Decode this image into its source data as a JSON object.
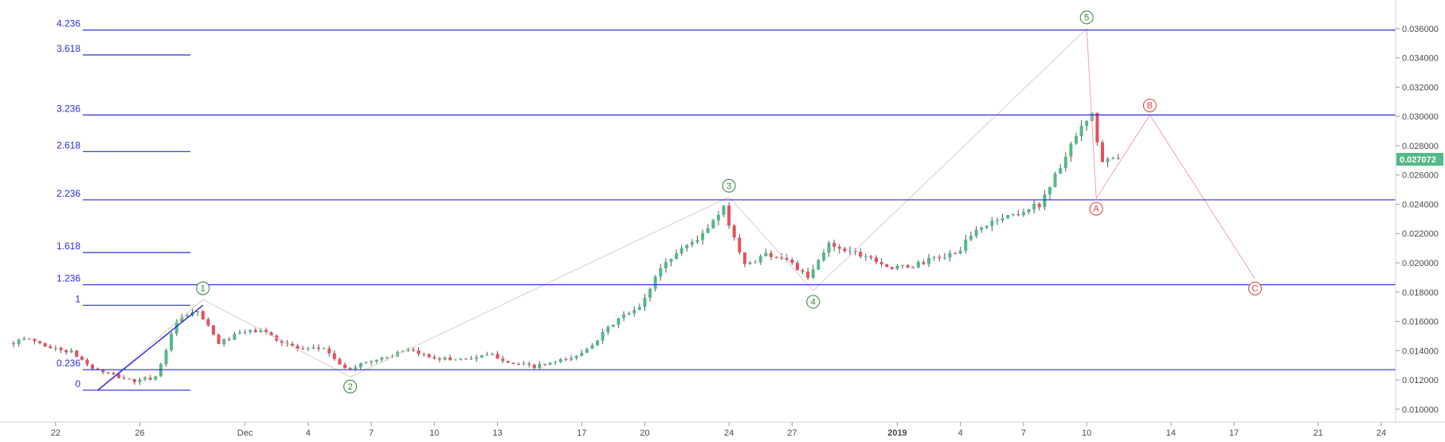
{
  "chart_data": {
    "type": "candlestick",
    "colors": {
      "up": "#53b987",
      "down": "#eb4d5c",
      "wick": "#555555",
      "fib_line": "#2b2bd8",
      "fib_text": "#2b2bd8",
      "wave_impulse": "#2e7d32",
      "wave_corrective": "#e53935",
      "wave_path_impulse": "#d9cfc4",
      "wave_path_corrective": "#f3a3a8",
      "axis_text": "#4a4a4a",
      "price_tag": "#53b987"
    },
    "y_axis": {
      "range": [
        0.0095,
        0.0373
      ],
      "ticks": [
        "0.036000",
        "0.034000",
        "0.032000",
        "0.030000",
        "0.028000",
        "0.026000",
        "0.024000",
        "0.022000",
        "0.020000",
        "0.018000",
        "0.016000",
        "0.014000",
        "0.012000",
        "0.010000"
      ]
    },
    "x_axis": {
      "range": [
        "2018-11-20",
        "2019-01-24"
      ],
      "ticks": [
        {
          "date": "2018-11-22",
          "label": "22"
        },
        {
          "date": "2018-11-26",
          "label": "26"
        },
        {
          "date": "2018-12-01",
          "label": "Dec"
        },
        {
          "date": "2018-12-04",
          "label": "4"
        },
        {
          "date": "2018-12-07",
          "label": "7"
        },
        {
          "date": "2018-12-10",
          "label": "10"
        },
        {
          "date": "2018-12-13",
          "label": "13"
        },
        {
          "date": "2018-12-17",
          "label": "17"
        },
        {
          "date": "2018-12-20",
          "label": "20"
        },
        {
          "date": "2018-12-24",
          "label": "24"
        },
        {
          "date": "2018-12-27",
          "label": "27"
        },
        {
          "date": "2019-01-01",
          "label": "2019"
        },
        {
          "date": "2019-01-04",
          "label": "4"
        },
        {
          "date": "2019-01-07",
          "label": "7"
        },
        {
          "date": "2019-01-10",
          "label": "10"
        },
        {
          "date": "2019-01-14",
          "label": "14"
        },
        {
          "date": "2019-01-17",
          "label": "17"
        },
        {
          "date": "2019-01-21",
          "label": "21"
        },
        {
          "date": "2019-01-24",
          "label": "24"
        }
      ]
    },
    "last_price": "0.027072",
    "price_path": [
      [
        "2018-11-20",
        0.0145
      ],
      [
        "2018-11-21",
        0.0148
      ],
      [
        "2018-11-22",
        0.0142
      ],
      [
        "2018-11-23",
        0.0139
      ],
      [
        "2018-11-24",
        0.0128
      ],
      [
        "2018-11-25",
        0.0123
      ],
      [
        "2018-11-26",
        0.0119
      ],
      [
        "2018-11-27",
        0.0122
      ],
      [
        "2018-11-28",
        0.016
      ],
      [
        "2018-11-29",
        0.0167
      ],
      [
        "2018-11-30",
        0.0145
      ],
      [
        "2018-12-01",
        0.0152
      ],
      [
        "2018-12-02",
        0.0154
      ],
      [
        "2018-12-03",
        0.0146
      ],
      [
        "2018-12-04",
        0.014
      ],
      [
        "2018-12-05",
        0.0142
      ],
      [
        "2018-12-06",
        0.0127
      ],
      [
        "2018-12-07",
        0.0132
      ],
      [
        "2018-12-08",
        0.0136
      ],
      [
        "2018-12-09",
        0.014
      ],
      [
        "2018-12-10",
        0.0136
      ],
      [
        "2018-12-11",
        0.0134
      ],
      [
        "2018-12-12",
        0.0135
      ],
      [
        "2018-12-13",
        0.0137
      ],
      [
        "2018-12-14",
        0.0131
      ],
      [
        "2018-12-15",
        0.0129
      ],
      [
        "2018-12-16",
        0.0132
      ],
      [
        "2018-12-17",
        0.0136
      ],
      [
        "2018-12-18",
        0.0148
      ],
      [
        "2018-12-19",
        0.0162
      ],
      [
        "2018-12-20",
        0.0169
      ],
      [
        "2018-12-21",
        0.0197
      ],
      [
        "2018-12-22",
        0.021
      ],
      [
        "2018-12-23",
        0.0219
      ],
      [
        "2018-12-24",
        0.0237
      ],
      [
        "2018-12-25",
        0.0198
      ],
      [
        "2018-12-26",
        0.0206
      ],
      [
        "2018-12-27",
        0.0203
      ],
      [
        "2018-12-28",
        0.0189
      ],
      [
        "2018-12-29",
        0.0213
      ],
      [
        "2018-12-30",
        0.0208
      ],
      [
        "2018-12-31",
        0.0204
      ],
      [
        "2019-01-01",
        0.0196
      ],
      [
        "2019-01-02",
        0.0198
      ],
      [
        "2019-01-03",
        0.0203
      ],
      [
        "2019-01-04",
        0.0206
      ],
      [
        "2019-01-05",
        0.0222
      ],
      [
        "2019-01-06",
        0.023
      ],
      [
        "2019-01-07",
        0.0234
      ],
      [
        "2019-01-08",
        0.024
      ],
      [
        "2019-01-09",
        0.0266
      ],
      [
        "2019-01-10",
        0.0292
      ],
      [
        "2019-01-10",
        0.03
      ],
      [
        "2019-01-11",
        0.0268
      ],
      [
        "2019-01-11",
        0.0271
      ]
    ],
    "fib_levels": [
      {
        "label": "4.236",
        "value": 0.0359,
        "full": true
      },
      {
        "label": "3.618",
        "value": 0.0342,
        "full": false
      },
      {
        "label": "3.236",
        "value": 0.0301,
        "full": true
      },
      {
        "label": "2.618",
        "value": 0.0276,
        "full": false
      },
      {
        "label": "2.236",
        "value": 0.0243,
        "full": true
      },
      {
        "label": "1.618",
        "value": 0.0207,
        "full": false
      },
      {
        "label": "1.236",
        "value": 0.0185,
        "full": true
      },
      {
        "label": "1",
        "value": 0.0171,
        "full": false
      },
      {
        "label": "0.236",
        "value": 0.0127,
        "full": true
      },
      {
        "label": "0",
        "value": 0.0113,
        "full": false
      }
    ],
    "fib_anchor": {
      "from": [
        "2018-11-24",
        0.0113
      ],
      "to": [
        "2018-11-29",
        0.0171
      ]
    },
    "waves": [
      {
        "label": "1",
        "date": "2018-11-29",
        "value": 0.0175,
        "kind": "impulse"
      },
      {
        "label": "2",
        "date": "2018-12-06",
        "value": 0.0122,
        "kind": "impulse"
      },
      {
        "label": "3",
        "date": "2018-12-24",
        "value": 0.0245,
        "kind": "impulse"
      },
      {
        "label": "4",
        "date": "2018-12-28",
        "value": 0.0181,
        "kind": "impulse"
      },
      {
        "label": "5",
        "date": "2019-01-10",
        "value": 0.036,
        "kind": "impulse"
      },
      {
        "label": "A",
        "date": "2019-01-10",
        "value": 0.0244,
        "kind": "corrective"
      },
      {
        "label": "B",
        "date": "2019-01-13",
        "value": 0.0301,
        "kind": "corrective"
      },
      {
        "label": "C",
        "date": "2019-01-18",
        "value": 0.0189,
        "kind": "corrective"
      }
    ]
  }
}
